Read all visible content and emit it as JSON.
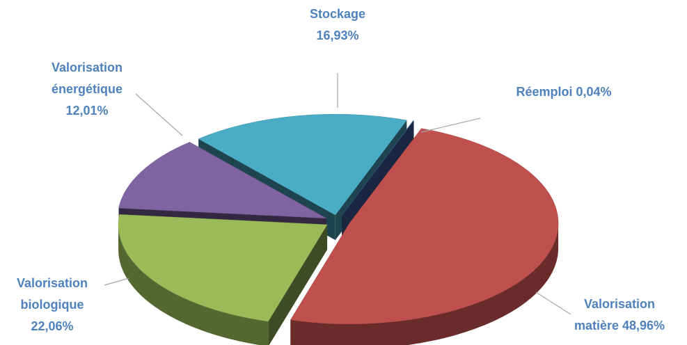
{
  "chart_data": {
    "type": "pie",
    "categories": [
      "Réemploi",
      "Valorisation matière",
      "Valorisation biologique",
      "Valorisation énergétique",
      "Stockage"
    ],
    "values": [
      0.04,
      48.96,
      22.06,
      12.01,
      16.93
    ],
    "value_labels": [
      "0,04%",
      "48,96%",
      "22,06%",
      "12,01%",
      "16,93%"
    ],
    "colors": [
      "#3e64a0",
      "#c0504d",
      "#9bbb59",
      "#8064a2",
      "#4bacc6"
    ]
  }
}
